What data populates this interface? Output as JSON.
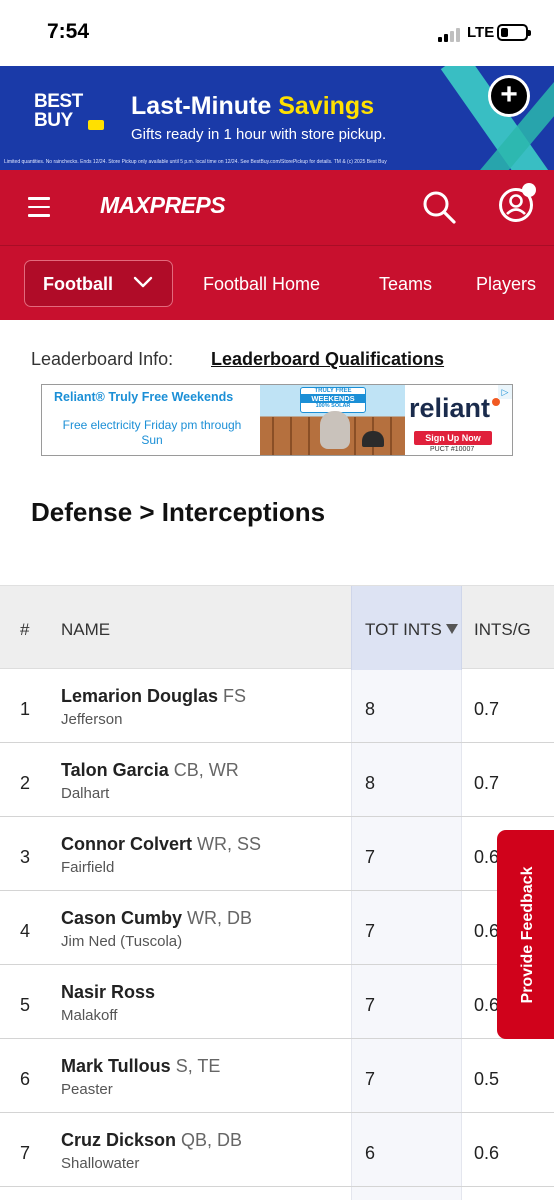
{
  "status_bar": {
    "time": "7:54",
    "network": "LTE"
  },
  "ad_banner": {
    "brand_line1": "BEST",
    "brand_line2": "BUY",
    "headline_part1": "Last-Minute ",
    "headline_part2": "Savings",
    "subtext": "Gifts ready in 1 hour with store pickup.",
    "fine_print": "Limited quantities. No rainchecks. Ends 12/24. Store Pickup only available until 5 p.m. local time on 12/24. See BestBuy.com/StorePickup for details. TM & (c) 2025 Best Buy",
    "colors": {
      "background": "#1a3aa8",
      "accent": "#ffe000"
    }
  },
  "header": {
    "logo_text": "MAXPREPS",
    "colors": {
      "background": "#c8102e"
    }
  },
  "nav": {
    "sport_select": "Football",
    "links": [
      "Football Home",
      "Teams",
      "Players"
    ]
  },
  "leaderboard_info": {
    "label": "Leaderboard Info:",
    "link": "Leaderboard Qualifications"
  },
  "reliant_ad": {
    "title": "Reliant® Truly Free Weekends",
    "subtitle": "Free electricity Friday pm through Sun",
    "badge_top": "TRULY FREE",
    "badge_mid": "WEEKENDS",
    "badge_bottom": "100% SOLAR",
    "brand": "reliant",
    "cta": "Sign Up Now",
    "license": "PUCT #10007"
  },
  "section_title": "Defense > Interceptions",
  "table": {
    "headers": {
      "rank": "#",
      "name": "NAME",
      "tot_ints": "TOT INTS",
      "ints_per_game": "INTS/G"
    },
    "sorted_by": "TOT INTS",
    "rows": [
      {
        "rank": "1",
        "name": "Lemarion Douglas",
        "pos": "FS",
        "school": "Jefferson",
        "tot": "8",
        "pg": "0.7"
      },
      {
        "rank": "2",
        "name": "Talon Garcia",
        "pos": "CB, WR",
        "school": "Dalhart",
        "tot": "8",
        "pg": "0.7"
      },
      {
        "rank": "3",
        "name": "Connor Colvert",
        "pos": "WR, SS",
        "school": "Fairfield",
        "tot": "7",
        "pg": "0.6"
      },
      {
        "rank": "4",
        "name": "Cason Cumby",
        "pos": "WR, DB",
        "school": "Jim Ned (Tuscola)",
        "tot": "7",
        "pg": "0.6"
      },
      {
        "rank": "5",
        "name": "Nasir Ross",
        "pos": "",
        "school": "Malakoff",
        "tot": "7",
        "pg": "0.6"
      },
      {
        "rank": "6",
        "name": "Mark Tullous",
        "pos": "S, TE",
        "school": "Peaster",
        "tot": "7",
        "pg": "0.5"
      },
      {
        "rank": "7",
        "name": "Cruz Dickson",
        "pos": "QB, DB",
        "school": "Shallowater",
        "tot": "6",
        "pg": "0.6"
      }
    ]
  },
  "feedback_tab": {
    "label": "Provide Feedback",
    "color": "#d0021b"
  }
}
